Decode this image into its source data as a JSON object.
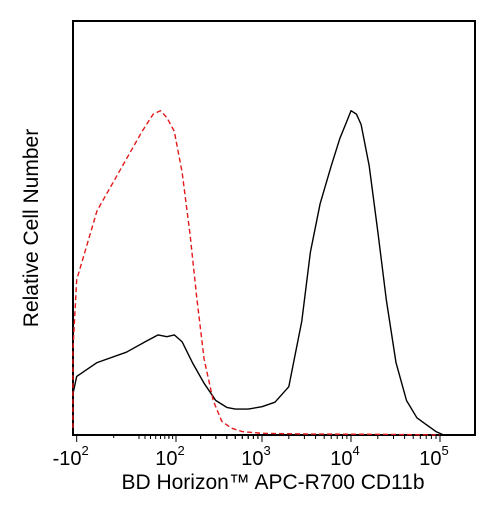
{
  "chart_data": {
    "type": "line",
    "title": "",
    "xlabel": "BD Horizon™ APC-R700 CD11b",
    "ylabel": "Relative Cell Number",
    "x_scale": "biexponential",
    "xlim": [
      -400,
      200000
    ],
    "ylim": [
      0,
      1
    ],
    "x_tick_labels": [
      {
        "value": -100,
        "base": "-10",
        "exp": "2"
      },
      {
        "value": 100,
        "base": "10",
        "exp": "2"
      },
      {
        "value": 1000,
        "base": "10",
        "exp": "3"
      },
      {
        "value": 10000,
        "base": "10",
        "exp": "4"
      },
      {
        "value": 100000,
        "base": "10",
        "exp": "5"
      }
    ],
    "grid": false,
    "legend": "none",
    "series": [
      {
        "color": "#000000",
        "style": "solid",
        "points": [
          [
            -300,
            0.04
          ],
          [
            -200,
            0.07
          ],
          [
            -150,
            0.12
          ],
          [
            -100,
            0.17
          ],
          [
            -50,
            0.21
          ],
          [
            0,
            0.24
          ],
          [
            30,
            0.27
          ],
          [
            55,
            0.29
          ],
          [
            75,
            0.285
          ],
          [
            95,
            0.29
          ],
          [
            120,
            0.27
          ],
          [
            160,
            0.21
          ],
          [
            220,
            0.15
          ],
          [
            300,
            0.1
          ],
          [
            400,
            0.08
          ],
          [
            500,
            0.075
          ],
          [
            700,
            0.075
          ],
          [
            1000,
            0.082
          ],
          [
            1400,
            0.095
          ],
          [
            2000,
            0.14
          ],
          [
            2800,
            0.33
          ],
          [
            3500,
            0.53
          ],
          [
            4500,
            0.67
          ],
          [
            6000,
            0.78
          ],
          [
            7500,
            0.86
          ],
          [
            9000,
            0.91
          ],
          [
            10000,
            0.94
          ],
          [
            11500,
            0.93
          ],
          [
            13000,
            0.9
          ],
          [
            16000,
            0.78
          ],
          [
            20000,
            0.59
          ],
          [
            25000,
            0.39
          ],
          [
            32000,
            0.21
          ],
          [
            42000,
            0.1
          ],
          [
            55000,
            0.05
          ],
          [
            70000,
            0.03
          ],
          [
            90000,
            0.01
          ],
          [
            110000,
            0.0
          ]
        ]
      },
      {
        "color": "#e31a1c",
        "style": "dashed",
        "points": [
          [
            -300,
            0.02
          ],
          [
            -220,
            0.08
          ],
          [
            -150,
            0.25
          ],
          [
            -100,
            0.45
          ],
          [
            -50,
            0.65
          ],
          [
            0,
            0.8
          ],
          [
            25,
            0.88
          ],
          [
            45,
            0.93
          ],
          [
            60,
            0.94
          ],
          [
            75,
            0.92
          ],
          [
            95,
            0.88
          ],
          [
            120,
            0.76
          ],
          [
            150,
            0.58
          ],
          [
            180,
            0.4
          ],
          [
            220,
            0.22
          ],
          [
            280,
            0.1
          ],
          [
            350,
            0.04
          ],
          [
            450,
            0.02
          ],
          [
            600,
            0.01
          ],
          [
            1000,
            0.005
          ],
          [
            3000,
            0.003
          ],
          [
            20000,
            0.002
          ],
          [
            100000,
            0.0
          ]
        ]
      }
    ]
  }
}
